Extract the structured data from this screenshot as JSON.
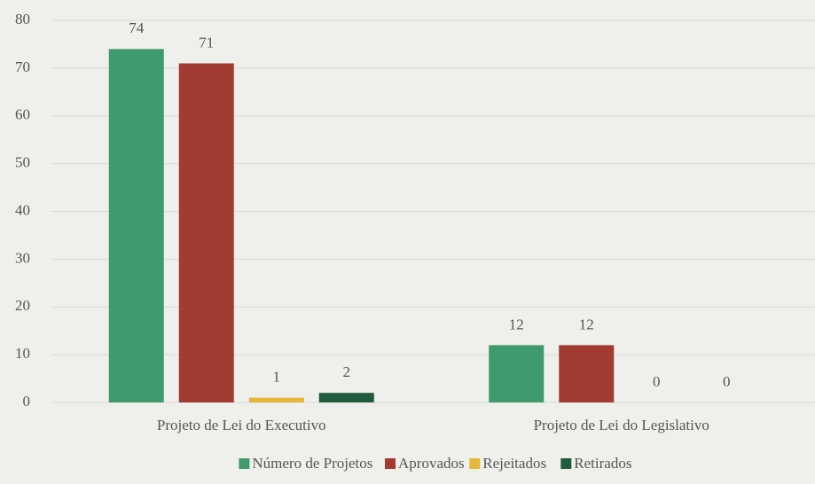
{
  "chart_data": {
    "type": "bar",
    "categories": [
      "Projeto de Lei do Executivo",
      "Projeto de Lei do Legislativo"
    ],
    "series": [
      {
        "name": "Número de Projetos",
        "color": "#3f9a6d",
        "values": [
          74,
          12
        ]
      },
      {
        "name": "Aprovados",
        "color": "#a23b31",
        "values": [
          71,
          12
        ]
      },
      {
        "name": "Rejeitados",
        "color": "#e5b73b",
        "values": [
          1,
          0
        ]
      },
      {
        "name": "Retirados",
        "color": "#1e5c3b",
        "values": [
          2,
          0
        ]
      }
    ],
    "ylim": [
      0,
      80
    ],
    "yticks": [
      0,
      10,
      20,
      30,
      40,
      50,
      60,
      70,
      80
    ],
    "grid": true,
    "legend": "bottom"
  }
}
